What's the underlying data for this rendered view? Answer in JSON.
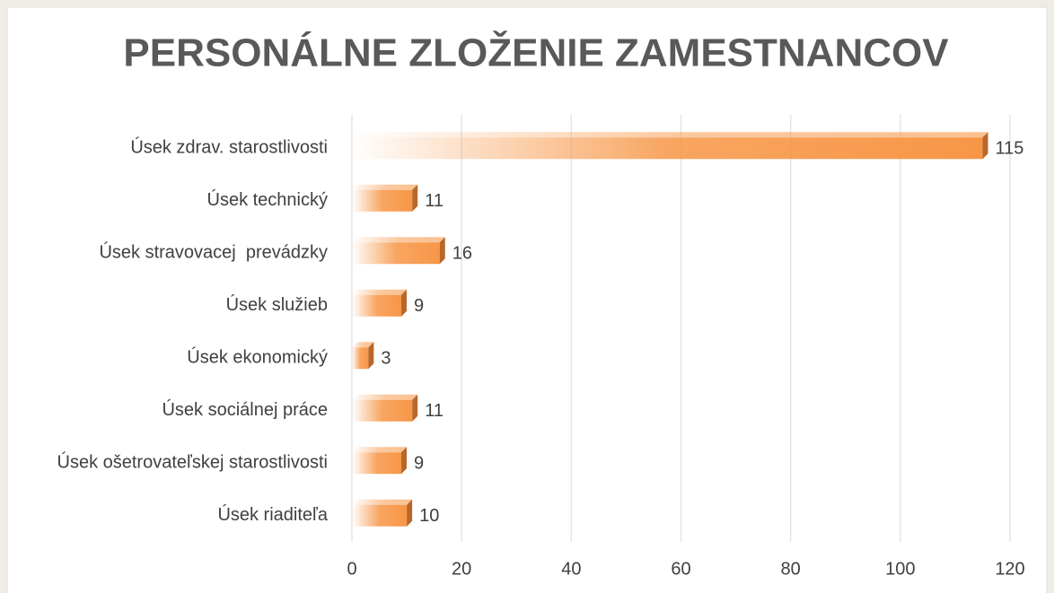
{
  "chart_data": {
    "type": "bar",
    "orientation": "horizontal",
    "title": "PERSONÁLNE ZLOŽENIE ZAMESTNANCOV",
    "categories": [
      "Úsek zdrav. starostlivosti",
      "Úsek technický",
      "Úsek stravovacej  prevádzky",
      "Úsek služieb",
      "Úsek ekonomický",
      "Úsek sociálnej práce",
      "Úsek ošetrovateľskej starostlivosti",
      "Úsek riaditeľa"
    ],
    "values": [
      115,
      11,
      16,
      9,
      3,
      11,
      9,
      10
    ],
    "color": "#f79646",
    "xlim": [
      0,
      120
    ],
    "xticks": [
      0,
      20,
      40,
      60,
      80,
      100,
      120
    ],
    "grid": true
  }
}
